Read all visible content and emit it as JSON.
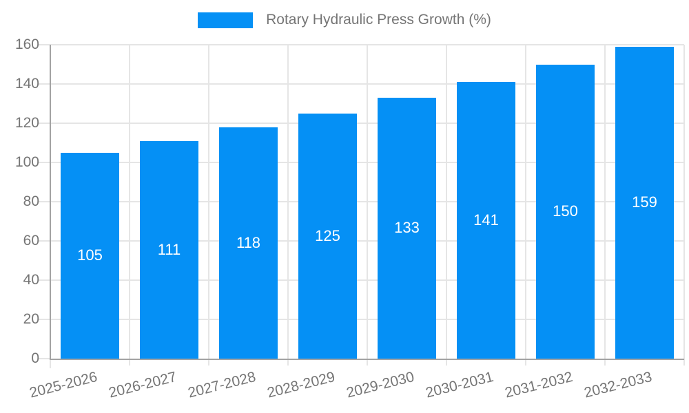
{
  "chart_data": {
    "type": "bar",
    "title": "",
    "legend": {
      "label": "Rotary Hydraulic Press Growth (%)",
      "position": "top"
    },
    "categories": [
      "2025-2026",
      "2026-2027",
      "2027-2028",
      "2028-2029",
      "2029-2030",
      "2030-2031",
      "2031-2032",
      "2032-2033"
    ],
    "values": [
      105,
      111,
      118,
      125,
      133,
      141,
      150,
      159
    ],
    "bar_labels": [
      "105",
      "111",
      "118",
      "125",
      "133",
      "141",
      "150",
      "159"
    ],
    "xlabel": "",
    "ylabel": "",
    "ylim": [
      0,
      160
    ],
    "yticks": [
      0,
      20,
      40,
      60,
      80,
      100,
      120,
      140,
      160
    ],
    "grid": true,
    "x_label_rotation_deg": -14,
    "colors": {
      "bar": "#0590F5",
      "axis": "#A3A3A3",
      "gridline": "#E5E5E5",
      "tick_label": "#757575",
      "legend_text": "#757575",
      "bar_label": "#FFFFFF",
      "background": "#FFFFFF"
    }
  }
}
